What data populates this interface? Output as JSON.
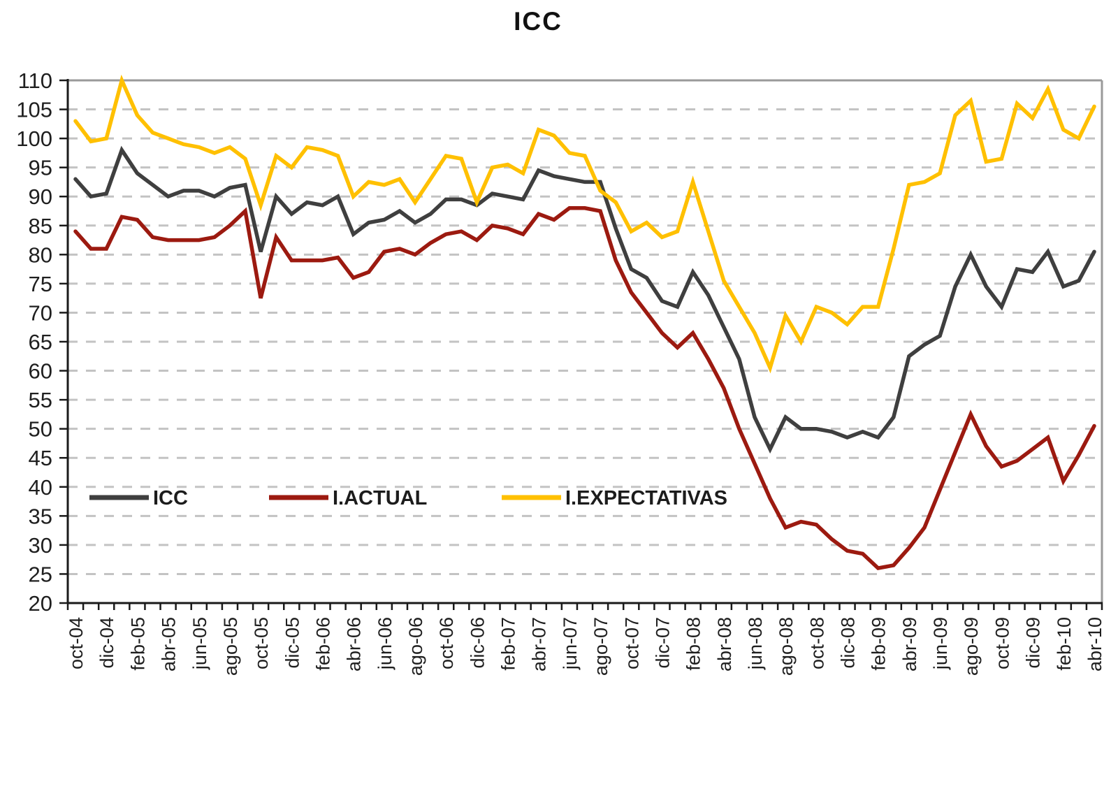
{
  "title": "ICC",
  "colors": {
    "icc_line": "#3f3f3f",
    "actual_line": "#9c1a10",
    "expectativas_line": "#ffc000",
    "grid_dashed": "#c3c3c3",
    "frame": "#9a9a9a",
    "axis": "#1a1a1a",
    "tick_label": "#1f1f1f",
    "background": "#ffffff"
  },
  "chart_data": {
    "type": "line",
    "title": "ICC",
    "xlabel": "",
    "ylabel": "",
    "ylim": [
      20,
      110
    ],
    "ytick_step": 5,
    "y_ticks": [
      110,
      105,
      100,
      95,
      90,
      85,
      80,
      75,
      70,
      65,
      60,
      55,
      50,
      45,
      40,
      35,
      30,
      25,
      20
    ],
    "grid": "horizontal-dashed",
    "legend_position": "inside-bottom-left",
    "x_tick_labels": [
      "oct-04",
      "dic-04",
      "feb-05",
      "abr-05",
      "jun-05",
      "ago-05",
      "oct-05",
      "dic-05",
      "feb-06",
      "abr-06",
      "jun-06",
      "ago-06",
      "oct-06",
      "dic-06",
      "feb-07",
      "abr-07",
      "jun-07",
      "ago-07",
      "oct-07",
      "dic-07",
      "feb-08",
      "abr-08",
      "jun-08",
      "ago-08",
      "oct-08",
      "dic-08",
      "feb-09",
      "abr-09",
      "jun-09",
      "ago-09",
      "oct-09",
      "dic-09",
      "feb-10",
      "abr-10"
    ],
    "categories": [
      "oct-04",
      "nov-04",
      "dic-04",
      "ene-05",
      "feb-05",
      "mar-05",
      "abr-05",
      "may-05",
      "jun-05",
      "jul-05",
      "ago-05",
      "sep-05",
      "oct-05",
      "nov-05",
      "dic-05",
      "ene-06",
      "feb-06",
      "mar-06",
      "abr-06",
      "may-06",
      "jun-06",
      "jul-06",
      "ago-06",
      "sep-06",
      "oct-06",
      "nov-06",
      "dic-06",
      "ene-07",
      "feb-07",
      "mar-07",
      "abr-07",
      "may-07",
      "jun-07",
      "jul-07",
      "ago-07",
      "sep-07",
      "oct-07",
      "nov-07",
      "dic-07",
      "ene-08",
      "feb-08",
      "mar-08",
      "abr-08",
      "may-08",
      "jun-08",
      "jul-08",
      "ago-08",
      "sep-08",
      "oct-08",
      "nov-08",
      "dic-08",
      "ene-09",
      "feb-09",
      "mar-09",
      "abr-09",
      "may-09",
      "jun-09",
      "jul-09",
      "ago-09",
      "sep-09",
      "oct-09",
      "nov-09",
      "dic-09",
      "ene-10",
      "feb-10",
      "mar-10",
      "abr-10"
    ],
    "series": [
      {
        "name": "ICC",
        "color": "#3f3f3f",
        "values": [
          93,
          90,
          90.5,
          98,
          94,
          92,
          90,
          91,
          91,
          90,
          91.5,
          92,
          80.5,
          90,
          87,
          89,
          88.5,
          90,
          83.5,
          85.5,
          86,
          87.5,
          85.5,
          87,
          89.5,
          89.5,
          88.5,
          90.5,
          90,
          89.5,
          94.5,
          93.5,
          93,
          92.5,
          92.5,
          84.5,
          77.5,
          76,
          72,
          71,
          77,
          73,
          67.5,
          62,
          52,
          46.5,
          52,
          50,
          50,
          49.5,
          48.5,
          49.5,
          48.5,
          52,
          62.5,
          64.5,
          66,
          74.5,
          80,
          74.5,
          71,
          77.5,
          77,
          80.5,
          74.5,
          75.5,
          80.5
        ]
      },
      {
        "name": "I.ACTUAL",
        "color": "#9c1a10",
        "values": [
          84,
          81,
          81,
          86.5,
          86,
          83,
          82.5,
          82.5,
          82.5,
          83,
          85,
          87.5,
          72.5,
          83,
          79,
          79,
          79,
          79.5,
          76,
          77,
          80.5,
          81,
          80,
          82,
          83.5,
          84,
          82.5,
          85,
          84.5,
          83.5,
          87,
          86,
          88,
          88,
          87.5,
          79,
          73.5,
          70,
          66.5,
          64,
          66.5,
          62,
          57,
          50,
          44,
          38,
          33,
          34,
          33.5,
          31,
          29,
          28.5,
          26,
          26.5,
          29.5,
          33,
          39.5,
          46,
          52.5,
          47,
          43.5,
          44.5,
          46.5,
          48.5,
          41,
          45.5,
          50.5
        ]
      },
      {
        "name": "I.EXPECTATIVAS",
        "color": "#ffc000",
        "values": [
          103,
          99.5,
          100,
          110,
          104,
          101,
          100,
          99,
          98.5,
          97.5,
          98.5,
          96.5,
          88.5,
          97,
          95,
          98.5,
          98,
          97,
          90,
          92.5,
          92,
          93,
          89,
          93,
          97,
          96.5,
          89,
          95,
          95.5,
          94,
          101.5,
          100.5,
          97.5,
          97,
          91,
          89,
          84,
          85.5,
          83,
          84,
          92.5,
          84,
          75.5,
          71,
          66.5,
          60.5,
          69.5,
          65,
          71,
          70,
          68,
          71,
          71,
          81,
          92,
          92.5,
          94,
          104,
          106.5,
          96,
          96.5,
          106,
          103.5,
          108.5,
          101.5,
          100,
          105.5
        ]
      }
    ]
  }
}
